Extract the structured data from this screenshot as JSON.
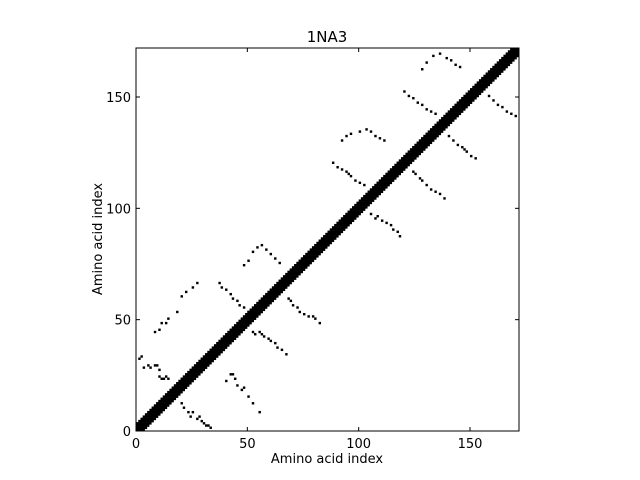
{
  "chart_data": {
    "type": "heatmap",
    "subtype": "contact-map",
    "title": "1NA3",
    "xlabel": "Amino acid index",
    "ylabel": "Amino acid index",
    "xlim": [
      0,
      172
    ],
    "ylim": [
      0,
      172
    ],
    "xticks": [
      0,
      50,
      100,
      150
    ],
    "yticks": [
      0,
      50,
      100,
      150
    ],
    "colors": {
      "contact": "#000000",
      "background": "#ffffff"
    },
    "diagonal_band": {
      "from": 0,
      "to": 172,
      "half_width": 3
    },
    "contacts": [
      [
        1,
        32
      ],
      [
        2,
        33
      ],
      [
        3,
        28
      ],
      [
        5,
        29
      ],
      [
        6,
        28
      ],
      [
        8,
        29
      ],
      [
        9,
        29
      ],
      [
        10,
        27
      ],
      [
        10,
        24
      ],
      [
        11,
        23
      ],
      [
        12,
        23
      ],
      [
        13,
        24
      ],
      [
        14,
        23
      ],
      [
        8,
        44
      ],
      [
        10,
        45
      ],
      [
        11,
        48
      ],
      [
        13,
        48
      ],
      [
        14,
        50
      ],
      [
        18,
        53
      ],
      [
        20,
        60
      ],
      [
        22,
        62
      ],
      [
        25,
        64
      ],
      [
        27,
        66
      ],
      [
        20,
        12
      ],
      [
        21,
        10
      ],
      [
        23,
        8
      ],
      [
        25,
        8
      ],
      [
        24,
        6
      ],
      [
        27,
        5
      ],
      [
        28,
        6
      ],
      [
        29,
        4
      ],
      [
        30,
        3
      ],
      [
        31,
        2
      ],
      [
        32,
        2
      ],
      [
        33,
        1
      ],
      [
        40,
        22
      ],
      [
        42,
        25
      ],
      [
        43,
        25
      ],
      [
        44,
        23
      ],
      [
        45,
        20
      ],
      [
        47,
        18
      ],
      [
        48,
        19
      ],
      [
        50,
        15
      ],
      [
        52,
        12
      ],
      [
        55,
        8
      ],
      [
        37,
        66
      ],
      [
        38,
        64
      ],
      [
        40,
        63
      ],
      [
        42,
        61
      ],
      [
        43,
        59
      ],
      [
        45,
        58
      ],
      [
        46,
        56
      ],
      [
        48,
        55
      ],
      [
        50,
        53
      ],
      [
        52,
        44
      ],
      [
        53,
        43
      ],
      [
        55,
        44
      ],
      [
        56,
        43
      ],
      [
        57,
        42
      ],
      [
        59,
        41
      ],
      [
        60,
        40
      ],
      [
        62,
        39
      ],
      [
        63,
        37
      ],
      [
        65,
        36
      ],
      [
        67,
        34
      ],
      [
        48,
        74
      ],
      [
        50,
        76
      ],
      [
        52,
        80
      ],
      [
        54,
        82
      ],
      [
        56,
        83
      ],
      [
        58,
        81
      ],
      [
        60,
        79
      ],
      [
        62,
        77
      ],
      [
        64,
        75
      ],
      [
        68,
        59
      ],
      [
        69,
        58
      ],
      [
        70,
        56
      ],
      [
        72,
        55
      ],
      [
        73,
        53
      ],
      [
        75,
        52
      ],
      [
        77,
        51
      ],
      [
        79,
        51
      ],
      [
        80,
        50
      ],
      [
        82,
        48
      ],
      [
        88,
        120
      ],
      [
        90,
        118
      ],
      [
        92,
        117
      ],
      [
        94,
        116
      ],
      [
        95,
        115
      ],
      [
        96,
        114
      ],
      [
        98,
        112
      ],
      [
        100,
        111
      ],
      [
        102,
        110
      ],
      [
        92,
        130
      ],
      [
        94,
        132
      ],
      [
        96,
        133
      ],
      [
        100,
        134
      ],
      [
        103,
        135
      ],
      [
        105,
        134
      ],
      [
        107,
        132
      ],
      [
        109,
        131
      ],
      [
        111,
        130
      ],
      [
        105,
        97
      ],
      [
        107,
        95
      ],
      [
        108,
        96
      ],
      [
        110,
        94
      ],
      [
        112,
        93
      ],
      [
        114,
        92
      ],
      [
        115,
        90
      ],
      [
        117,
        89
      ],
      [
        118,
        87
      ],
      [
        124,
        116
      ],
      [
        125,
        115
      ],
      [
        127,
        113
      ],
      [
        128,
        112
      ],
      [
        130,
        110
      ],
      [
        132,
        108
      ],
      [
        134,
        107
      ],
      [
        136,
        106
      ],
      [
        138,
        104
      ],
      [
        120,
        152
      ],
      [
        122,
        150
      ],
      [
        124,
        149
      ],
      [
        126,
        147
      ],
      [
        128,
        146
      ],
      [
        130,
        144
      ],
      [
        132,
        143
      ],
      [
        134,
        142
      ],
      [
        128,
        162
      ],
      [
        130,
        165
      ],
      [
        133,
        168
      ],
      [
        136,
        169
      ],
      [
        139,
        167
      ],
      [
        141,
        166
      ],
      [
        143,
        164
      ],
      [
        145,
        163
      ],
      [
        140,
        132
      ],
      [
        142,
        130
      ],
      [
        144,
        128
      ],
      [
        146,
        127
      ],
      [
        147,
        126
      ],
      [
        148,
        125
      ],
      [
        150,
        123
      ],
      [
        152,
        122
      ],
      [
        158,
        150
      ],
      [
        160,
        148
      ],
      [
        162,
        146
      ],
      [
        164,
        145
      ],
      [
        166,
        143
      ],
      [
        168,
        142
      ],
      [
        170,
        141
      ]
    ]
  }
}
